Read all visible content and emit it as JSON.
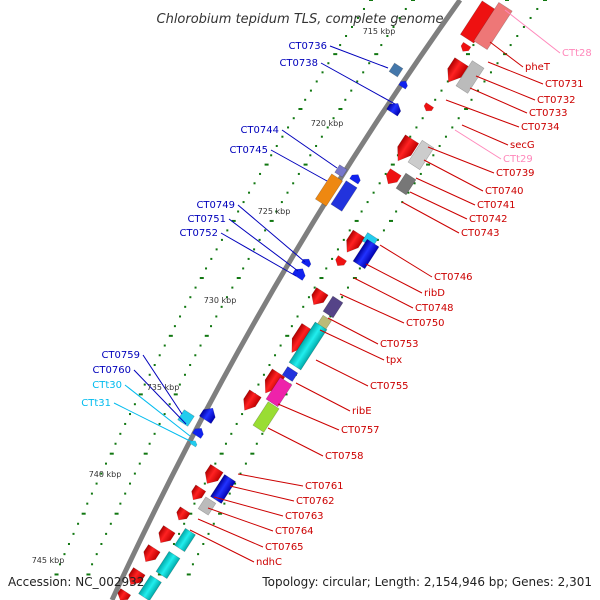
{
  "title": "Chlorobium tepidum TLS, complete genome",
  "footer": {
    "accession": "Accession: NC_002932",
    "summary": "Topology: circular; Length: 2,154,946 bp; Genes: 2,301"
  },
  "scale_ticks": [
    "715 kbp",
    "720 kbp",
    "725 kbp",
    "730 kbp",
    "735 kbp",
    "740 kbp",
    "745 kbp"
  ],
  "colors": {
    "forward_label": "#cc0000",
    "reverse_label": "#0000bb",
    "trna_forward_label": "#ff88bb",
    "trna_reverse_label": "#00bbee",
    "backbone": "#808080",
    "tick": "#117711"
  },
  "labels_left": [
    {
      "text": "CT0736",
      "kind": "reverse"
    },
    {
      "text": "CT0738",
      "kind": "reverse"
    },
    {
      "text": "CT0744",
      "kind": "reverse"
    },
    {
      "text": "CT0745",
      "kind": "reverse"
    },
    {
      "text": "CT0749",
      "kind": "reverse"
    },
    {
      "text": "CT0751",
      "kind": "reverse"
    },
    {
      "text": "CT0752",
      "kind": "reverse"
    },
    {
      "text": "CT0759",
      "kind": "reverse"
    },
    {
      "text": "CT0760",
      "kind": "reverse"
    },
    {
      "text": "CTt30",
      "kind": "trna_reverse"
    },
    {
      "text": "CTt31",
      "kind": "trna_reverse"
    }
  ],
  "labels_right": [
    {
      "text": "CTt28",
      "kind": "trna_forward"
    },
    {
      "text": "pheT",
      "kind": "forward"
    },
    {
      "text": "CT0731",
      "kind": "forward"
    },
    {
      "text": "CT0732",
      "kind": "forward"
    },
    {
      "text": "CT0733",
      "kind": "forward"
    },
    {
      "text": "CT0734",
      "kind": "forward"
    },
    {
      "text": "secG",
      "kind": "forward"
    },
    {
      "text": "CTt29",
      "kind": "trna_forward"
    },
    {
      "text": "CT0739",
      "kind": "forward"
    },
    {
      "text": "CT0740",
      "kind": "forward"
    },
    {
      "text": "CT0741",
      "kind": "forward"
    },
    {
      "text": "CT0742",
      "kind": "forward"
    },
    {
      "text": "CT0743",
      "kind": "forward"
    },
    {
      "text": "CT0746",
      "kind": "forward"
    },
    {
      "text": "ribD",
      "kind": "forward"
    },
    {
      "text": "CT0748",
      "kind": "forward"
    },
    {
      "text": "CT0750",
      "kind": "forward"
    },
    {
      "text": "CT0753",
      "kind": "forward"
    },
    {
      "text": "tpx",
      "kind": "forward"
    },
    {
      "text": "CT0755",
      "kind": "forward"
    },
    {
      "text": "ribE",
      "kind": "forward"
    },
    {
      "text": "CT0757",
      "kind": "forward"
    },
    {
      "text": "CT0758",
      "kind": "forward"
    },
    {
      "text": "CT0761",
      "kind": "forward"
    },
    {
      "text": "CT0762",
      "kind": "forward"
    },
    {
      "text": "CT0763",
      "kind": "forward"
    },
    {
      "text": "CT0764",
      "kind": "forward"
    },
    {
      "text": "CT0765",
      "kind": "forward"
    },
    {
      "text": "ndhC",
      "kind": "forward"
    }
  ],
  "features": [
    {
      "strand": "forward",
      "kind": "arrow",
      "color": "#ee1111"
    },
    {
      "strand": "forward",
      "kind": "box",
      "color": "#ee7777"
    },
    {
      "strand": "forward",
      "kind": "box",
      "color": "#bbbbbb"
    },
    {
      "strand": "reverse",
      "kind": "box",
      "color": "#4477aa"
    },
    {
      "strand": "reverse",
      "kind": "arrow",
      "color": "#1122ee"
    },
    {
      "strand": "reverse",
      "kind": "box",
      "color": "#7777cc"
    },
    {
      "strand": "reverse",
      "kind": "box",
      "color": "#ee8811"
    },
    {
      "strand": "reverse",
      "kind": "box",
      "color": "#2233dd"
    },
    {
      "strand": "forward",
      "kind": "box",
      "color": "#22ccee"
    },
    {
      "strand": "forward",
      "kind": "box",
      "color": "#554488"
    },
    {
      "strand": "forward",
      "kind": "box",
      "color": "#bbbb77"
    },
    {
      "strand": "forward",
      "kind": "box",
      "color": "#ee22aa"
    },
    {
      "strand": "forward",
      "kind": "box",
      "color": "#99dd33"
    },
    {
      "strand": "forward",
      "kind": "box",
      "color": "#00dddd"
    },
    {
      "strand": "forward",
      "kind": "box",
      "color": "#777777"
    }
  ]
}
